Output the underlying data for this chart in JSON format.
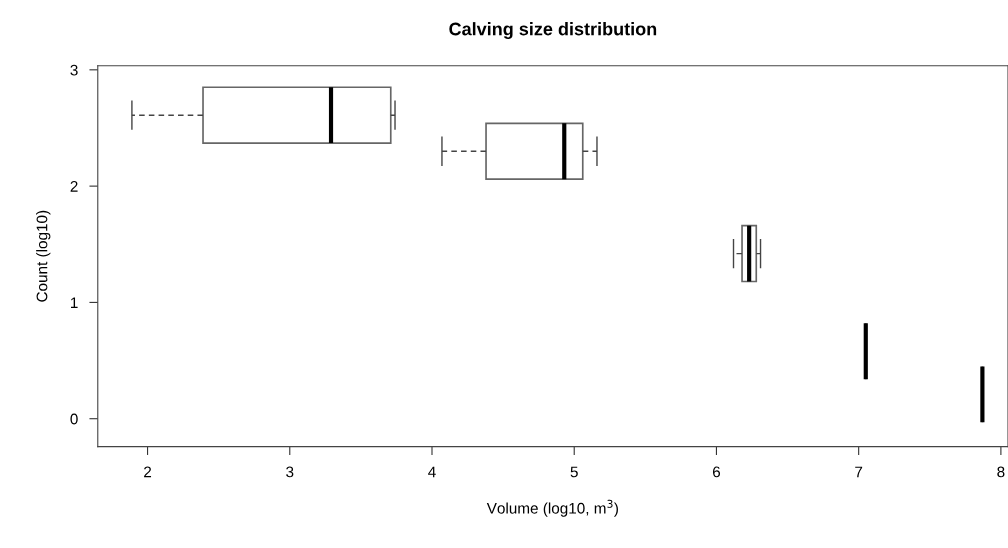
{
  "chart_data": {
    "type": "box",
    "orientation": "horizontal",
    "title": "Calving size distribution",
    "xlabel": "Volume (log10, m$^{3}$)",
    "ylabel": "Count (log10)",
    "x": [
      2.61,
      2.3,
      1.42,
      0.58,
      0.21
    ],
    "boxes": [
      {
        "low": 1.89,
        "q1": 2.39,
        "median": 3.29,
        "q3": 3.71,
        "high": 3.74
      },
      {
        "low": 4.07,
        "q1": 4.38,
        "median": 4.93,
        "q3": 5.06,
        "high": 5.16
      },
      {
        "low": 6.12,
        "q1": 6.18,
        "median": 6.23,
        "q3": 6.28,
        "high": 6.31
      },
      {
        "low": 7.05,
        "q1": 7.05,
        "median": 7.05,
        "q3": 7.05,
        "high": 7.05
      },
      {
        "low": 7.87,
        "q1": 7.87,
        "median": 7.87,
        "q3": 7.87,
        "high": 7.87
      }
    ],
    "xlim": [
      1.65,
      8.05
    ],
    "xticks": [
      2,
      3,
      4,
      5,
      6,
      7,
      8
    ],
    "ylim": [
      -0.24,
      3.035
    ],
    "yticks": [
      0,
      1,
      2,
      3
    ],
    "grid": false,
    "legend": false
  }
}
